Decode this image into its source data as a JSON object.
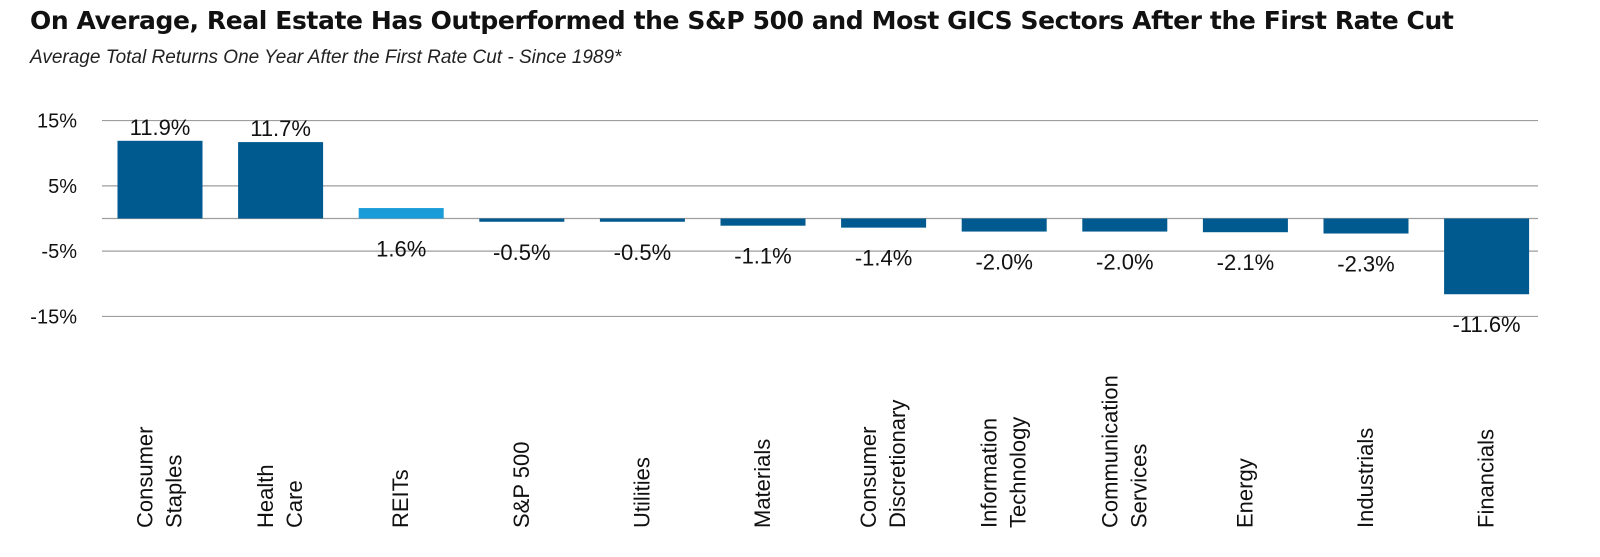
{
  "title": "On Average, Real Estate Has Outperformed the S&P 500 and Most GICS Sectors After the First Rate Cut",
  "subtitle": "Average Total Returns One Year After the First Rate Cut - Since 1989*",
  "chart_data": {
    "type": "bar",
    "categories": [
      [
        "Consumer",
        "Staples"
      ],
      [
        "Health",
        "Care"
      ],
      [
        "REITs"
      ],
      [
        "S&P 500"
      ],
      [
        "Utilities"
      ],
      [
        "Materials"
      ],
      [
        "Consumer",
        "Discretionary"
      ],
      [
        "Information",
        "Technology"
      ],
      [
        "Communication",
        "Services"
      ],
      [
        "Energy"
      ],
      [
        "Industrials"
      ],
      [
        "Financials"
      ]
    ],
    "values": [
      11.9,
      11.7,
      1.6,
      -0.5,
      -0.5,
      -1.1,
      -1.4,
      -2.0,
      -2.0,
      -2.1,
      -2.3,
      -11.6
    ],
    "value_labels": [
      "11.9%",
      "11.7%",
      "1.6%",
      "-0.5%",
      "-0.5%",
      "-1.1%",
      "-1.4%",
      "-2.0%",
      "-2.0%",
      "-2.1%",
      "-2.3%",
      "-11.6%"
    ],
    "highlight_category": "REITs",
    "colors": {
      "bar": "#005A8F",
      "highlight": "#1B9CD9",
      "grid": "#9E9E9E"
    },
    "yticks": [
      15,
      5,
      -5,
      -15
    ],
    "ytick_labels": [
      "15%",
      "5%",
      "-5%",
      "-15%"
    ],
    "ylim": [
      -15,
      15
    ],
    "grid": true
  }
}
